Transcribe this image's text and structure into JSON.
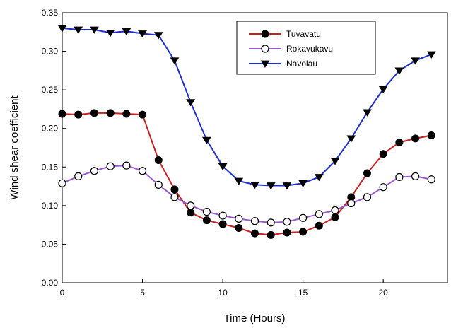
{
  "chart_data": {
    "type": "line",
    "title": "",
    "xlabel": "Time (Hours)",
    "ylabel": "Wind shear coefficient",
    "xlim": [
      0,
      24
    ],
    "ylim": [
      0,
      0.35
    ],
    "x_ticks": [
      "0",
      "5",
      "10",
      "15",
      "20"
    ],
    "x_tick_values": [
      0,
      5,
      10,
      15,
      20
    ],
    "y_ticks": [
      "0.00",
      "0.05",
      "0.10",
      "0.15",
      "0.20",
      "0.25",
      "0.30",
      "0.35"
    ],
    "y_tick_values": [
      0,
      0.05,
      0.1,
      0.15,
      0.2,
      0.25,
      0.3,
      0.35
    ],
    "grid": false,
    "legend_position": "top-right",
    "x": [
      0,
      1,
      2,
      3,
      4,
      5,
      6,
      7,
      8,
      9,
      10,
      11,
      12,
      13,
      14,
      15,
      16,
      17,
      18,
      19,
      20,
      21,
      22,
      23
    ],
    "series": [
      {
        "name": "Tuvavatu",
        "line_color": "#cc1f1f",
        "marker": "filled-circle",
        "values": [
          0.219,
          0.218,
          0.22,
          0.22,
          0.219,
          0.218,
          0.159,
          0.121,
          0.091,
          0.081,
          0.076,
          0.071,
          0.064,
          0.062,
          0.065,
          0.066,
          0.074,
          0.085,
          0.111,
          0.142,
          0.167,
          0.182,
          0.187,
          0.191
        ]
      },
      {
        "name": "Rokavukavu",
        "line_color": "#9b59d0",
        "marker": "open-circle",
        "values": [
          0.129,
          0.138,
          0.145,
          0.151,
          0.152,
          0.145,
          0.127,
          0.111,
          0.1,
          0.092,
          0.087,
          0.083,
          0.08,
          0.078,
          0.079,
          0.084,
          0.089,
          0.094,
          0.103,
          0.111,
          0.124,
          0.137,
          0.138,
          0.134
        ]
      },
      {
        "name": "Navolau",
        "line_color": "#1f2fcc",
        "marker": "filled-triangle-down",
        "values": [
          0.33,
          0.328,
          0.328,
          0.324,
          0.326,
          0.323,
          0.321,
          0.288,
          0.234,
          0.185,
          0.151,
          0.132,
          0.127,
          0.126,
          0.126,
          0.129,
          0.137,
          0.158,
          0.187,
          0.221,
          0.251,
          0.275,
          0.288,
          0.296
        ]
      }
    ]
  }
}
